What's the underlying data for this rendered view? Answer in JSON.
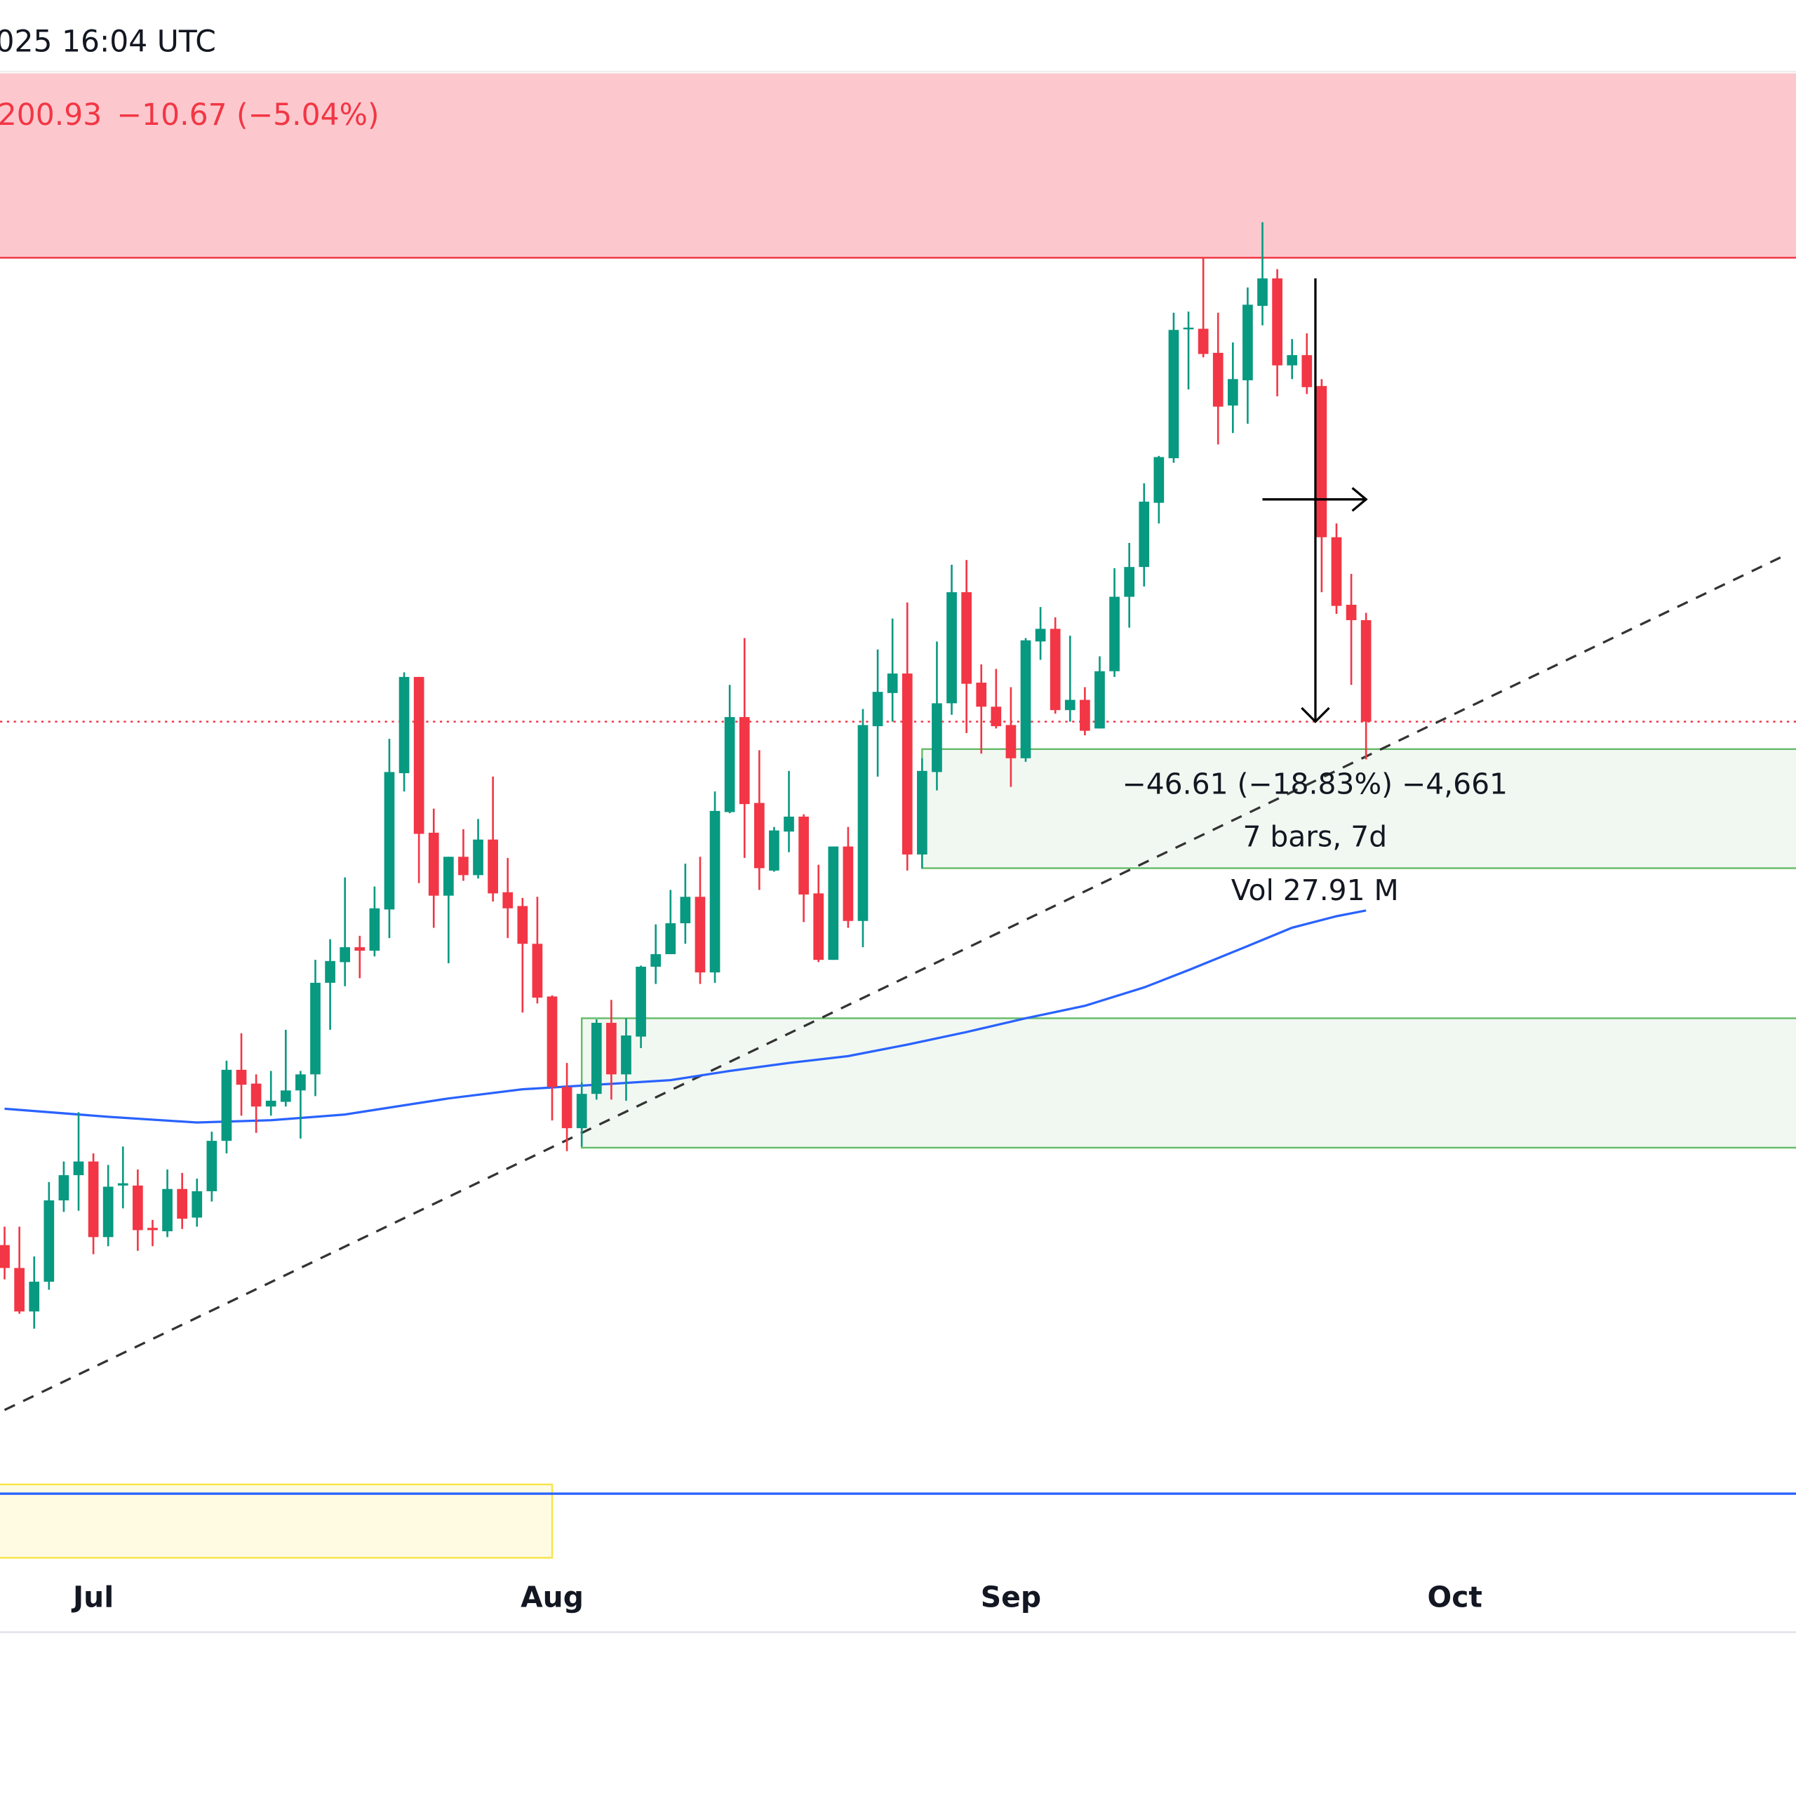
{
  "header": {
    "datetime_text": "025 16:04 UTC",
    "price_text": "200.93",
    "change_text": "−10.67 (−5.04%)"
  },
  "colors": {
    "up": "#089981",
    "down": "#f23645",
    "ma": "#2962ff",
    "resistance_fill": "#fcc8cd",
    "resistance_line": "#f23645",
    "demand_fill": "#f1f8f1",
    "demand_border": "#66bb6a",
    "yellow_fill": "#fffbe3",
    "yellow_border": "#f7e44a",
    "trendline": "#333333",
    "price_line": "#f23645",
    "blue_line": "#2962ff"
  },
  "chart_data": {
    "type": "candlestick",
    "interval": "1D",
    "x_axis_ticks": [
      {
        "date": "2025-07-01",
        "label": "Jul"
      },
      {
        "date": "2025-08-01",
        "label": "Aug"
      },
      {
        "date": "2025-09-01",
        "label": "Sep"
      },
      {
        "date": "2025-10-01",
        "label": "Oct"
      }
    ],
    "last_price": 200.93,
    "candles_columns": [
      "date",
      "open",
      "high",
      "low",
      "close"
    ],
    "candles": [
      [
        "2025-06-25",
        145.89,
        147.82,
        142.28,
        143.48
      ],
      [
        "2025-06-26",
        143.48,
        147.82,
        138.67,
        138.91
      ],
      [
        "2025-06-27",
        138.91,
        144.69,
        137.1,
        142.04
      ],
      [
        "2025-06-28",
        142.04,
        152.52,
        141.19,
        150.59
      ],
      [
        "2025-06-29",
        150.59,
        154.68,
        149.38,
        153.24
      ],
      [
        "2025-06-30",
        153.24,
        159.86,
        149.5,
        154.68
      ],
      [
        "2025-07-01",
        154.68,
        155.53,
        144.93,
        146.73
      ],
      [
        "2025-07-02",
        146.73,
        154.32,
        145.77,
        152.03
      ],
      [
        "2025-07-03",
        152.15,
        156.25,
        149.75,
        152.39
      ],
      [
        "2025-07-04",
        152.15,
        153.84,
        145.29,
        147.46
      ],
      [
        "2025-07-05",
        147.7,
        148.54,
        145.77,
        147.46
      ],
      [
        "2025-07-06",
        147.34,
        153.84,
        146.73,
        151.79
      ],
      [
        "2025-07-07",
        151.79,
        153.48,
        147.58,
        148.66
      ],
      [
        "2025-07-08",
        148.78,
        152.88,
        147.82,
        151.55
      ],
      [
        "2025-07-09",
        151.55,
        157.81,
        150.47,
        156.85
      ],
      [
        "2025-07-10",
        156.85,
        165.28,
        155.53,
        164.32
      ],
      [
        "2025-07-11",
        164.32,
        168.17,
        159.5,
        162.75
      ],
      [
        "2025-07-12",
        162.87,
        163.84,
        157.69,
        160.46
      ],
      [
        "2025-07-13",
        160.46,
        164.2,
        159.5,
        161.07
      ],
      [
        "2025-07-14",
        160.95,
        168.53,
        160.46,
        162.15
      ],
      [
        "2025-07-15",
        162.15,
        164.2,
        157.09,
        163.84
      ],
      [
        "2025-07-16",
        163.84,
        175.88,
        161.55,
        173.47
      ],
      [
        "2025-07-17",
        173.47,
        178.05,
        168.53,
        175.76
      ],
      [
        "2025-07-18",
        175.64,
        184.55,
        173.11,
        177.21
      ],
      [
        "2025-07-19",
        177.21,
        178.41,
        173.95,
        176.84
      ],
      [
        "2025-07-20",
        176.84,
        183.59,
        176.24,
        181.3
      ],
      [
        "2025-07-21",
        181.18,
        199.12,
        178.17,
        195.63
      ],
      [
        "2025-07-22",
        195.51,
        206.11,
        193.59,
        205.63
      ],
      [
        "2025-07-23",
        205.63,
        205.63,
        183.95,
        189.13
      ],
      [
        "2025-07-24",
        189.25,
        191.78,
        179.25,
        182.63
      ],
      [
        "2025-07-25",
        182.63,
        186.72,
        175.52,
        186.72
      ],
      [
        "2025-07-26",
        186.72,
        189.61,
        184.19,
        184.79
      ],
      [
        "2025-07-27",
        184.79,
        190.69,
        184.43,
        188.53
      ],
      [
        "2025-07-28",
        188.53,
        195.15,
        182.02,
        182.87
      ],
      [
        "2025-07-29",
        182.99,
        186.6,
        178.17,
        181.3
      ],
      [
        "2025-07-30",
        181.54,
        182.39,
        170.34,
        177.57
      ],
      [
        "2025-07-31",
        177.57,
        182.51,
        171.3,
        171.91
      ],
      [
        "2025-08-01",
        172.03,
        172.15,
        158.99,
        162.51
      ],
      [
        "2025-08-02",
        162.51,
        165.04,
        155.77,
        158.18
      ],
      [
        "2025-08-03",
        158.18,
        162.99,
        156.25,
        161.79
      ],
      [
        "2025-08-04",
        161.79,
        169.62,
        161.19,
        169.26
      ],
      [
        "2025-08-05",
        169.26,
        171.67,
        161.19,
        163.84
      ],
      [
        "2025-08-06",
        163.84,
        169.74,
        161.07,
        167.93
      ],
      [
        "2025-08-07",
        167.81,
        175.28,
        166.61,
        175.16
      ],
      [
        "2025-08-08",
        175.16,
        179.61,
        173.35,
        176.48
      ],
      [
        "2025-08-09",
        176.48,
        183.23,
        176.48,
        179.73
      ],
      [
        "2025-08-10",
        179.73,
        186.0,
        177.57,
        182.51
      ],
      [
        "2025-08-11",
        182.51,
        186.72,
        173.35,
        174.56
      ],
      [
        "2025-08-12",
        174.56,
        193.59,
        173.47,
        191.54
      ],
      [
        "2025-08-13",
        191.42,
        204.79,
        191.3,
        201.41
      ],
      [
        "2025-08-14",
        201.41,
        209.72,
        186.6,
        192.26
      ],
      [
        "2025-08-15",
        192.38,
        197.92,
        183.23,
        185.52
      ],
      [
        "2025-08-16",
        185.27,
        189.85,
        185.15,
        189.49
      ],
      [
        "2025-08-17",
        189.37,
        195.75,
        187.2,
        190.94
      ],
      [
        "2025-08-18",
        190.94,
        191.18,
        179.85,
        182.75
      ],
      [
        "2025-08-19",
        182.87,
        185.88,
        175.64,
        175.88
      ],
      [
        "2025-08-20",
        175.88,
        187.8,
        175.88,
        187.8
      ],
      [
        "2025-08-21",
        187.8,
        189.85,
        179.25,
        179.97
      ],
      [
        "2025-08-22",
        179.97,
        202.26,
        177.21,
        200.57
      ],
      [
        "2025-08-23",
        200.45,
        208.52,
        195.15,
        204.06
      ],
      [
        "2025-08-24",
        203.94,
        211.77,
        200.93,
        205.99
      ],
      [
        "2025-08-25",
        205.99,
        213.46,
        185.27,
        186.96
      ],
      [
        "2025-08-26",
        186.96,
        197.08,
        185.52,
        195.75
      ],
      [
        "2025-08-27",
        195.63,
        209.36,
        193.7,
        202.86
      ],
      [
        "2025-08-28",
        202.86,
        217.43,
        201.65,
        214.54
      ],
      [
        "2025-08-29",
        214.54,
        217.92,
        199.73,
        204.91
      ],
      [
        "2025-08-30",
        205.03,
        206.95,
        197.56,
        202.5
      ],
      [
        "2025-08-31",
        202.5,
        206.47,
        200.21,
        200.45
      ],
      [
        "2025-09-01",
        200.57,
        204.55,
        194.07,
        197.08
      ],
      [
        "2025-09-02",
        197.08,
        209.72,
        196.71,
        209.48
      ],
      [
        "2025-09-03",
        209.36,
        212.98,
        207.43,
        210.69
      ],
      [
        "2025-09-04",
        210.69,
        211.89,
        201.77,
        202.14
      ],
      [
        "2025-09-05",
        202.14,
        209.97,
        200.93,
        203.22
      ],
      [
        "2025-09-06",
        203.22,
        204.55,
        199.49,
        199.97
      ],
      [
        "2025-09-07",
        200.21,
        207.8,
        200.21,
        206.23
      ],
      [
        "2025-09-08",
        206.23,
        217.07,
        205.63,
        214.06
      ],
      [
        "2025-09-09",
        214.06,
        219.72,
        210.81,
        217.19
      ],
      [
        "2025-09-10",
        217.19,
        225.99,
        215.14,
        224.06
      ],
      [
        "2025-09-11",
        223.94,
        228.87,
        221.77,
        228.75
      ],
      [
        "2025-09-12",
        228.63,
        243.93,
        228.15,
        242.12
      ],
      [
        "2025-09-13",
        242.24,
        244.05,
        235.86,
        242.36
      ],
      [
        "2025-09-14",
        242.24,
        249.71,
        239.23,
        239.59
      ],
      [
        "2025-09-15",
        239.71,
        243.93,
        230.08,
        234.05
      ],
      [
        "2025-09-16",
        234.17,
        240.8,
        231.28,
        236.95
      ],
      [
        "2025-09-17",
        236.82,
        246.58,
        232.25,
        244.77
      ],
      [
        "2025-09-18",
        244.65,
        253.44,
        242.6,
        247.54
      ],
      [
        "2025-09-19",
        247.54,
        248.51,
        235.14,
        238.39
      ],
      [
        "2025-09-20",
        238.39,
        241.16,
        236.95,
        239.47
      ],
      [
        "2025-09-21",
        239.47,
        241.76,
        235.38,
        236.1
      ],
      [
        "2025-09-22",
        236.22,
        236.95,
        214.54,
        220.32
      ],
      [
        "2025-09-23",
        220.32,
        221.77,
        212.26,
        213.1
      ],
      [
        "2025-09-24",
        213.22,
        216.47,
        204.79,
        211.6
      ],
      [
        "2025-09-25",
        211.6,
        212.37,
        196.96,
        200.93
      ]
    ],
    "moving_average": [
      [
        "2025-06-25",
        160.23
      ],
      [
        "2025-07-02",
        159.38
      ],
      [
        "2025-07-08",
        158.78
      ],
      [
        "2025-07-13",
        159.02
      ],
      [
        "2025-07-18",
        159.62
      ],
      [
        "2025-07-21",
        160.35
      ],
      [
        "2025-07-25",
        161.31
      ],
      [
        "2025-07-30",
        162.27
      ],
      [
        "2025-08-04",
        162.75
      ],
      [
        "2025-08-09",
        163.23
      ],
      [
        "2025-08-13",
        164.2
      ],
      [
        "2025-08-17",
        165.04
      ],
      [
        "2025-08-21",
        165.76
      ],
      [
        "2025-08-25",
        166.97
      ],
      [
        "2025-08-29",
        168.29
      ],
      [
        "2025-09-02",
        169.74
      ],
      [
        "2025-09-06",
        171.05
      ],
      [
        "2025-09-10",
        172.98
      ],
      [
        "2025-09-13",
        174.8
      ],
      [
        "2025-09-17",
        177.33
      ],
      [
        "2025-09-20",
        179.26
      ],
      [
        "2025-09-23",
        180.47
      ],
      [
        "2025-09-25",
        181.07
      ]
    ],
    "drawings": {
      "resistance_zone": {
        "price_top": 269.1,
        "price_bottom": 249.71,
        "extends": "full-width"
      },
      "demand_zone_upper": {
        "start": "2025-08-26",
        "price_top": 198.04,
        "price_bottom": 185.52,
        "extends": "right"
      },
      "demand_zone_lower": {
        "start": "2025-08-03",
        "price_top": 169.74,
        "price_bottom": 156.13,
        "extends": "right"
      },
      "yellow_zone": {
        "end": "2025-08-01",
        "price_top": 120.72,
        "price_bottom": 113.01,
        "extends": "left"
      },
      "blue_horizontal_line": {
        "price": 119.75
      },
      "trendline": {
        "points": [
          [
            "2025-06-25",
            128.55
          ],
          [
            "2025-10-23",
            218.19
          ]
        ],
        "style": "dashed"
      },
      "measure": {
        "start_date": "2025-09-18",
        "end_date": "2025-09-25",
        "start_price": 247.54,
        "end_price": 200.93,
        "line1": "−46.61 (−18.83%) −4,661",
        "line2": "7 bars, 7d",
        "line3": "Vol 27.91 M"
      }
    }
  }
}
